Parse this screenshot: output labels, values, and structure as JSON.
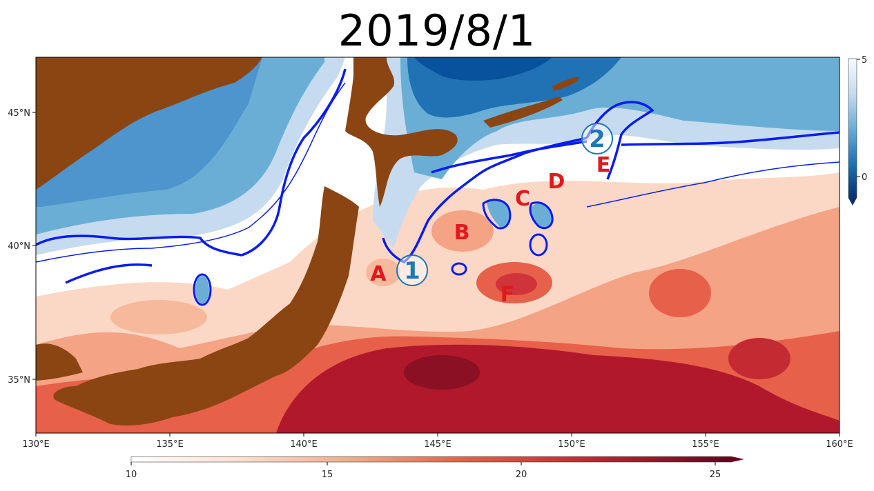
{
  "title": "2019/8/1",
  "map": {
    "x_ticks": [
      "130°E",
      "135°E",
      "140°E",
      "145°E",
      "150°E",
      "155°E",
      "160°E"
    ],
    "y_ticks": [
      "35°N",
      "40°N",
      "45°N"
    ],
    "colors": {
      "land": "#8b4513",
      "warm_strong": "#b2182b",
      "warm_mid": "#e7604a",
      "warm_light": "#f6b99c",
      "neutral": "#ffffff",
      "cold_light": "#c6dbef",
      "cold_mid": "#6aaed6",
      "cold_strong": "#2171b5",
      "front_line": "#0a1cf0"
    }
  },
  "markers": {
    "A": "A",
    "B": "B",
    "C": "C",
    "D": "D",
    "E": "E",
    "F": "F",
    "circle_1": "1",
    "circle_2": "2",
    "marker_color": "#e0191e",
    "circle_color": "#1f78b4"
  },
  "colorbar_bottom": {
    "ticks": [
      "10",
      "15",
      "20",
      "25"
    ]
  },
  "colorbar_right": {
    "ticks": [
      "5",
      "0"
    ]
  }
}
